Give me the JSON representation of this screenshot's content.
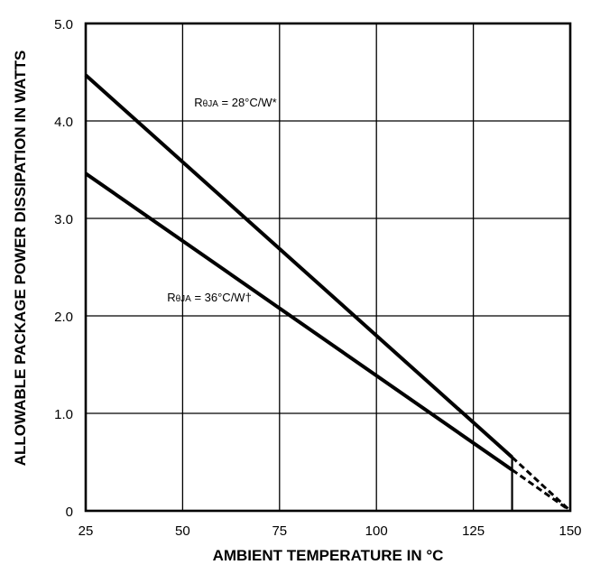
{
  "chart_data": {
    "type": "line",
    "title": "",
    "xlabel": "AMBIENT TEMPERATURE IN °C",
    "ylabel": "ALLOWABLE PACKAGE POWER DISSIPATION IN WATTS",
    "xlim": [
      25,
      150
    ],
    "ylim": [
      0,
      5.0
    ],
    "x_ticks": [
      25,
      50,
      75,
      100,
      125,
      150
    ],
    "x_tick_labels": [
      "25",
      "50",
      "75",
      "100",
      "125",
      "150"
    ],
    "y_ticks": [
      0,
      1.0,
      2.0,
      3.0,
      4.0,
      5.0
    ],
    "y_tick_labels": [
      "0",
      "1.0",
      "2.0",
      "3.0",
      "4.0",
      "5.0"
    ],
    "grid": true,
    "marker_line_x": 135,
    "series": [
      {
        "name": "RθJA = 28°C/W*",
        "label_parts": {
          "main": "R",
          "sub": "θJA",
          "rest": " = 28°C/W*"
        },
        "solid": [
          [
            25,
            4.47
          ],
          [
            135,
            0.55
          ]
        ],
        "dashed": [
          [
            135,
            0.55
          ],
          [
            150,
            0.0
          ]
        ]
      },
      {
        "name": "RθJA = 36°C/W†",
        "label_parts": {
          "main": "R",
          "sub": "θJA",
          "rest": " = 36°C/W†"
        },
        "solid": [
          [
            25,
            3.46
          ],
          [
            135,
            0.42
          ]
        ],
        "dashed": [
          [
            135,
            0.42
          ],
          [
            150,
            0.0
          ]
        ]
      }
    ],
    "annotations": [
      {
        "series": 0,
        "x": 53,
        "y": 4.15
      },
      {
        "series": 1,
        "x": 46,
        "y": 2.15
      }
    ],
    "colors": {
      "line": "#000000",
      "grid": "#000000",
      "background": "#ffffff"
    }
  }
}
